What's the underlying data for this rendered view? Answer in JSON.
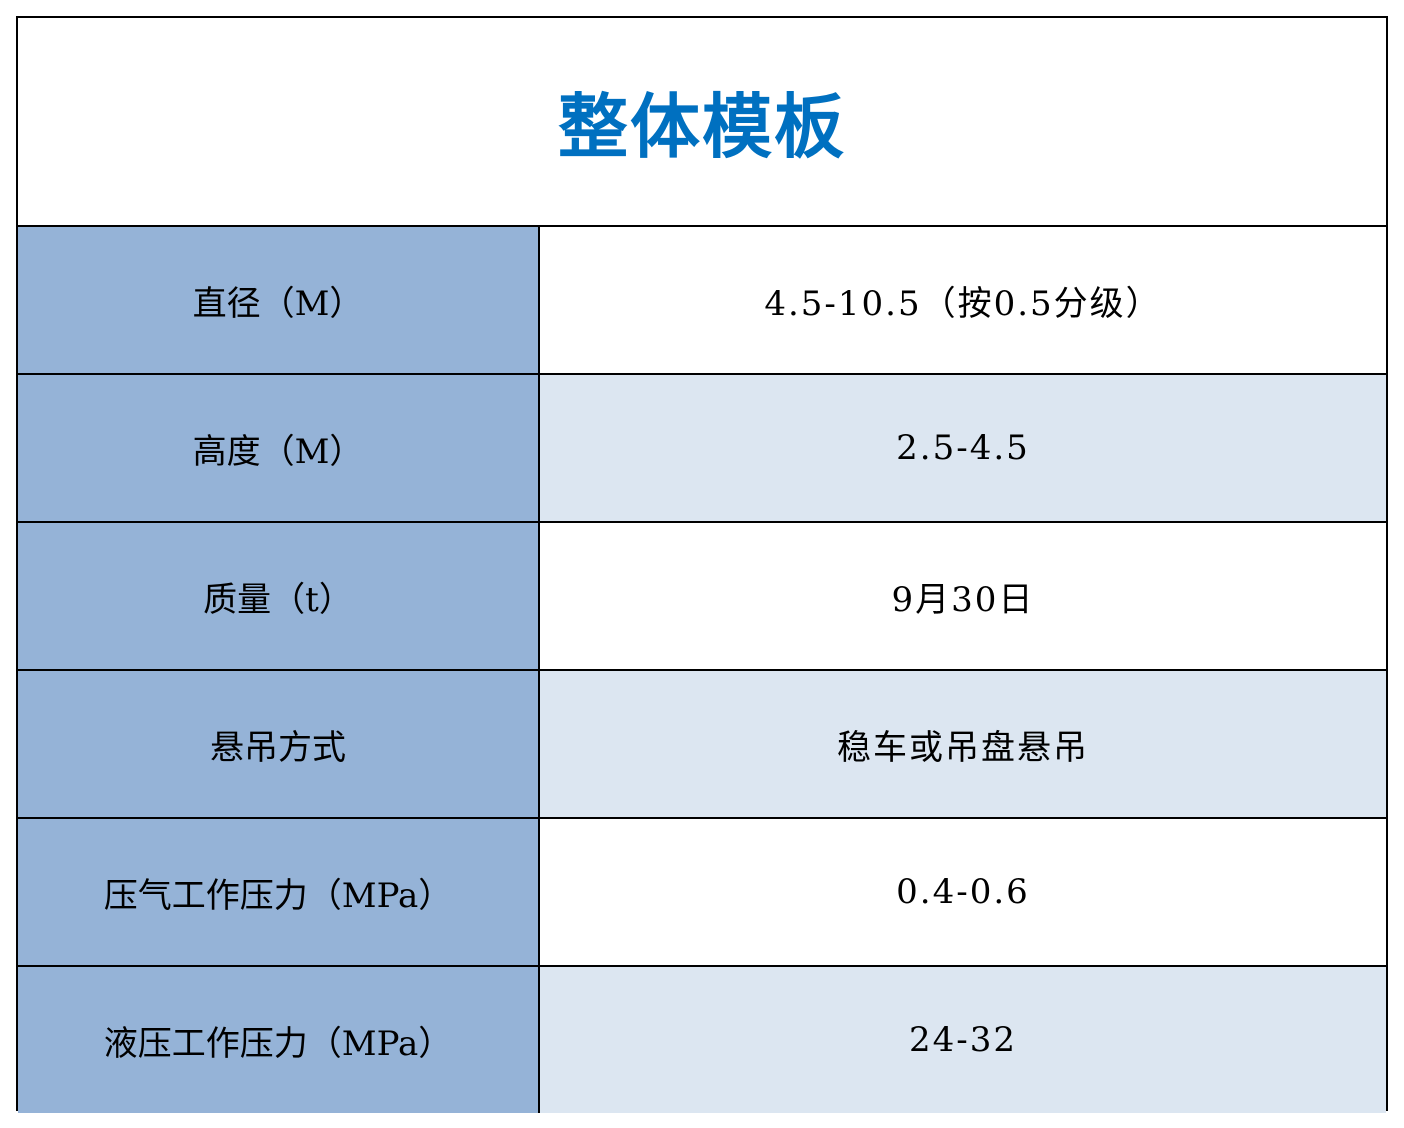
{
  "title": "整体模板",
  "colors": {
    "title": "#0070c0",
    "label_bg": "#95b3d7",
    "alt_row_bg": "#dce6f1"
  },
  "rows": [
    {
      "label": "直径（M）",
      "value": "4.5-10.5（按0.5分级）"
    },
    {
      "label": "高度（M）",
      "value": "2.5-4.5"
    },
    {
      "label": "质量（t）",
      "value": "9月30日"
    },
    {
      "label": "悬吊方式",
      "value": "稳车或吊盘悬吊"
    },
    {
      "label": "压气工作压力（MPa）",
      "value": "0.4-0.6"
    },
    {
      "label": "液压工作压力（MPa）",
      "value": "24-32"
    }
  ]
}
